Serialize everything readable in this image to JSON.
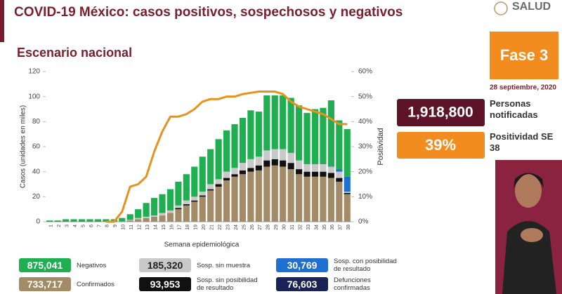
{
  "header": {
    "title": "COVID-19 México: casos positivos, sospechosos y negativos",
    "logo": "SALUD"
  },
  "panel": {
    "phase": "Fase 3",
    "date": "28 septiembre, 2020",
    "notified": {
      "number": "1,918,800",
      "label": "Personas notificadas"
    },
    "positivity": {
      "number": "39%",
      "label": "Positividad SE 38"
    }
  },
  "chart_data": {
    "type": "bar",
    "stacked": true,
    "title": "Escenario nacional",
    "x_label": "Semana epidemiológica",
    "y_label": "Casos (unidades en miles)",
    "y2_label": "Positividad",
    "categories": [
      "1",
      "2",
      "3",
      "4",
      "5",
      "6",
      "7",
      "8",
      "9",
      "10",
      "11",
      "12",
      "13",
      "14",
      "15",
      "16",
      "17",
      "18",
      "19",
      "20",
      "21",
      "22",
      "23",
      "24",
      "25",
      "26",
      "27",
      "28",
      "29",
      "30",
      "31",
      "32",
      "33",
      "34",
      "35",
      "36",
      "37",
      "38"
    ],
    "ylim": [
      0,
      120
    ],
    "yticks": [
      0,
      20,
      40,
      60,
      80,
      100,
      120
    ],
    "y2lim": [
      0,
      60
    ],
    "y2ticks": [
      {
        "value": 0,
        "label": "0%"
      },
      {
        "value": 10,
        "label": "10%"
      },
      {
        "value": 20,
        "label": "20%"
      },
      {
        "value": 30,
        "label": "30%"
      },
      {
        "value": 40,
        "label": "40%"
      },
      {
        "value": 50,
        "label": "50%"
      },
      {
        "value": 60,
        "label": "60%"
      }
    ],
    "series": [
      {
        "name": "Confirmados",
        "color": "#a48b68",
        "total": "733,717",
        "values": [
          0,
          0,
          0,
          0,
          0,
          0,
          0,
          0,
          0,
          0.3,
          1,
          2,
          3,
          4,
          5,
          7,
          10,
          13,
          16,
          20,
          25,
          28,
          33,
          36,
          38,
          40,
          41,
          44,
          45,
          44,
          42,
          38,
          36,
          36,
          36,
          35,
          32,
          22
        ]
      },
      {
        "name": "Sosp. sin posibilidad de resultado",
        "color": "#111111",
        "total": "93,953",
        "values": [
          0,
          0,
          0,
          0,
          0,
          0,
          0,
          0,
          0,
          0,
          0,
          0,
          0,
          0,
          0,
          0,
          1,
          1,
          1,
          1,
          1,
          2,
          2,
          2,
          3,
          3,
          4,
          5,
          5,
          5,
          5,
          4,
          4,
          4,
          4,
          4,
          3,
          1
        ]
      },
      {
        "name": "Sosp. sin muestra",
        "color": "#c9c9c9",
        "total": "185,320",
        "values": [
          0,
          0,
          0,
          0,
          0,
          0,
          0,
          0,
          0,
          0,
          0.5,
          1,
          1,
          1,
          2,
          2,
          2,
          3,
          3,
          3,
          4,
          4,
          5,
          5,
          6,
          7,
          7,
          8,
          8,
          9,
          8,
          7,
          6,
          6,
          6,
          5,
          5,
          1
        ]
      },
      {
        "name": "Sosp. con posibilidad de resultado",
        "color": "#1f6fd1",
        "total": "30,769",
        "values": [
          0,
          0,
          0,
          0,
          0,
          0,
          0,
          0,
          0,
          0,
          0,
          0,
          0,
          0,
          0,
          0,
          0,
          0,
          0,
          0,
          0,
          0,
          0,
          0,
          0,
          0,
          0,
          0,
          0,
          0,
          0,
          0,
          0,
          0,
          0,
          0.5,
          2,
          12
        ]
      },
      {
        "name": "Negativos",
        "color": "#1fae50",
        "total": "875,041",
        "values": [
          1,
          1,
          2,
          2,
          2,
          2,
          2,
          2,
          2,
          2.7,
          4.5,
          7,
          11,
          14,
          15,
          17,
          19,
          21,
          24,
          28,
          28,
          32,
          33,
          35,
          36,
          39,
          36,
          44,
          43,
          43,
          44,
          44,
          41,
          44,
          45,
          52.5,
          39,
          38
        ]
      },
      {
        "type": "line",
        "axis": "y2",
        "color": "#e8921e",
        "values": [
          null,
          null,
          null,
          null,
          null,
          null,
          null,
          0,
          0,
          4,
          14,
          15,
          18,
          28,
          36,
          42,
          42,
          43,
          45,
          48,
          49,
          49,
          50,
          50,
          51,
          51.5,
          52,
          52,
          52,
          51,
          48,
          46,
          45,
          44,
          43,
          41,
          39,
          39
        ]
      }
    ],
    "extra_legend": [
      {
        "name": "Defunciones confirmadas",
        "color": "#1b2255",
        "total": "76,603"
      }
    ]
  }
}
